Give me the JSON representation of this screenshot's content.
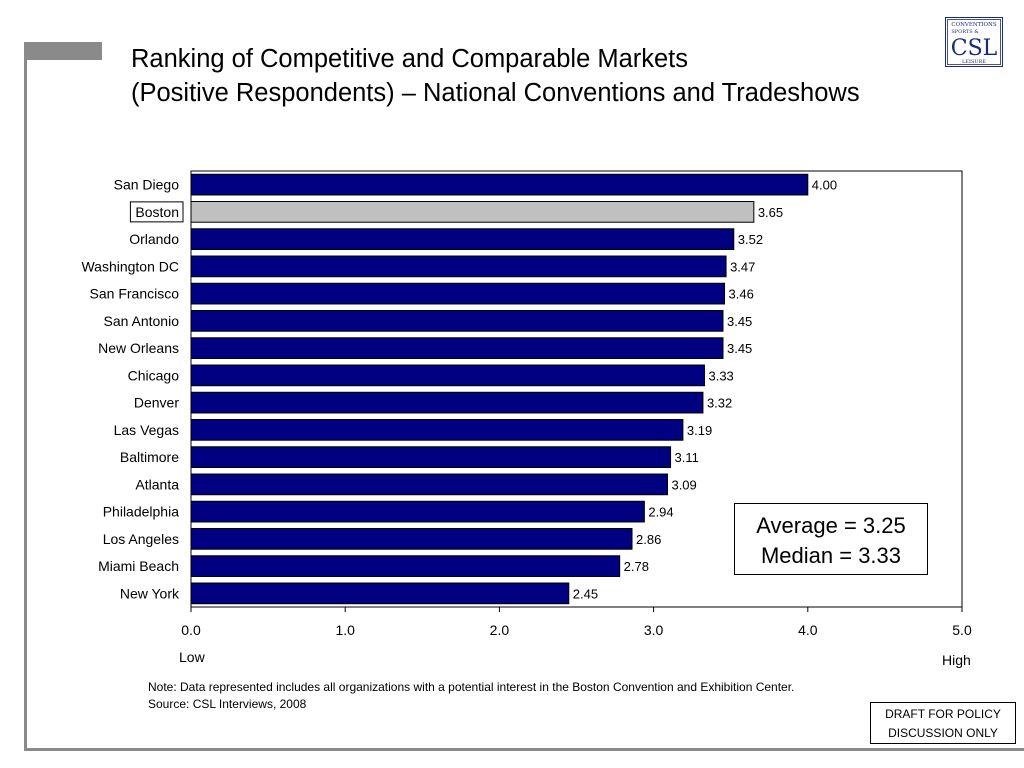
{
  "title": {
    "line1": "Ranking of Competitive and Comparable Markets",
    "line2": "(Positive Respondents) – National Conventions and Tradeshows"
  },
  "logo": {
    "top_text": "CONVENTIONS",
    "mid_text": "SPORTS &",
    "main_text": "CSL",
    "bottom_text": "LEISURE"
  },
  "chart_data": {
    "type": "bar",
    "orientation": "horizontal",
    "categories": [
      "San Diego",
      "Boston",
      "Orlando",
      "Washington DC",
      "San Francisco",
      "San Antonio",
      "New Orleans",
      "Chicago",
      "Denver",
      "Las Vegas",
      "Baltimore",
      "Atlanta",
      "Philadelphia",
      "Los Angeles",
      "Miami Beach",
      "New York"
    ],
    "values": [
      4.0,
      3.65,
      3.52,
      3.47,
      3.46,
      3.45,
      3.45,
      3.33,
      3.32,
      3.19,
      3.11,
      3.09,
      2.94,
      2.86,
      2.78,
      2.45
    ],
    "value_labels": [
      "4.00",
      "3.65",
      "3.52",
      "3.47",
      "3.46",
      "3.45",
      "3.45",
      "3.33",
      "3.32",
      "3.19",
      "3.11",
      "3.09",
      "2.94",
      "2.86",
      "2.78",
      "2.45"
    ],
    "highlight": "Boston",
    "xlim": [
      0,
      5
    ],
    "xticks": [
      "0.0",
      "1.0",
      "2.0",
      "3.0",
      "4.0",
      "5.0"
    ],
    "xlabel_low": "Low",
    "xlabel_high": "High",
    "grid": false,
    "colors": {
      "bar": "#000080",
      "highlight_bar": "#c0c0c0",
      "bar_border": "#000000"
    }
  },
  "summary": {
    "average": "Average = 3.25",
    "median": "Median = 3.33"
  },
  "note": {
    "line1": "Note: Data represented includes all organizations with a potential interest in the Boston Convention and Exhibition Center.",
    "line2": "Source:  CSL Interviews, 2008"
  },
  "draft": {
    "line1": "DRAFT FOR POLICY",
    "line2": "DISCUSSION ONLY"
  }
}
